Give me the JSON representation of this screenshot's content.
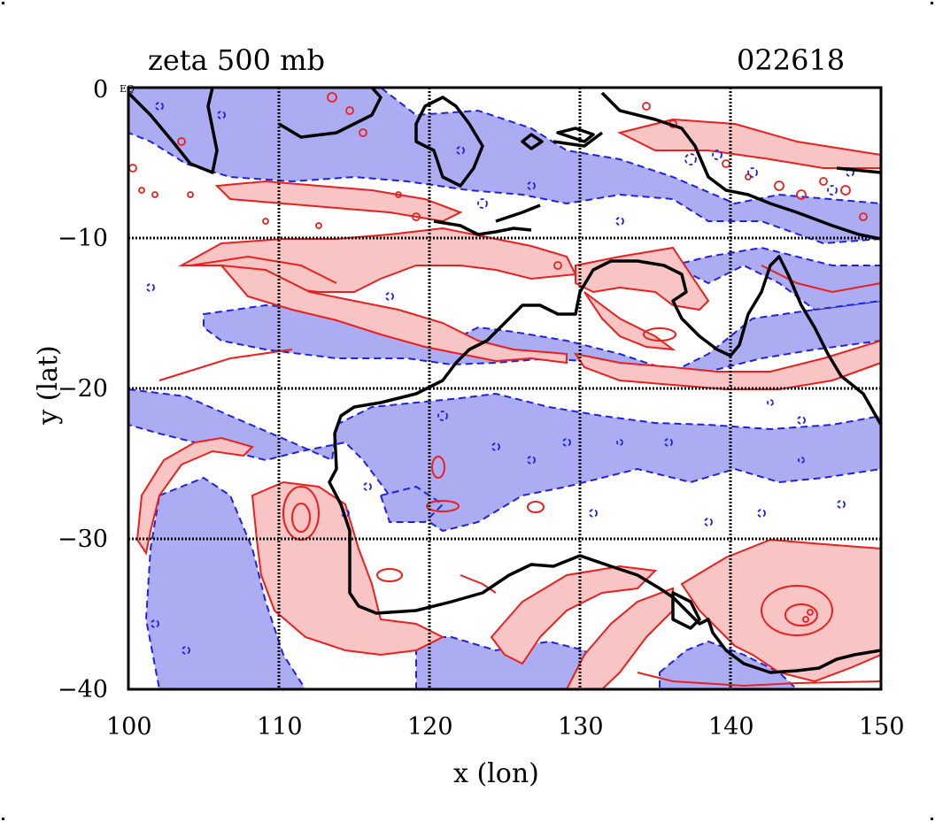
{
  "title": "zeta 500 mb",
  "time_label": "022618",
  "corner_label": "EQ",
  "axes": {
    "xlabel": "x (lon)",
    "ylabel": "y (lat)",
    "x_range": [
      100,
      150
    ],
    "y_range": [
      -40,
      0
    ],
    "x_ticks": [
      "100",
      "110",
      "120",
      "130",
      "140",
      "150"
    ],
    "y_ticks": [
      "0",
      "−10",
      "−20",
      "−30",
      "−40"
    ],
    "grid": true
  },
  "colors": {
    "positive_line": "#e8201e",
    "positive_fill": "#f9c4c4",
    "negative_line": "#1f22e0",
    "negative_fill": "#acacf2",
    "coast": "#000000",
    "grid": "#000000"
  }
}
